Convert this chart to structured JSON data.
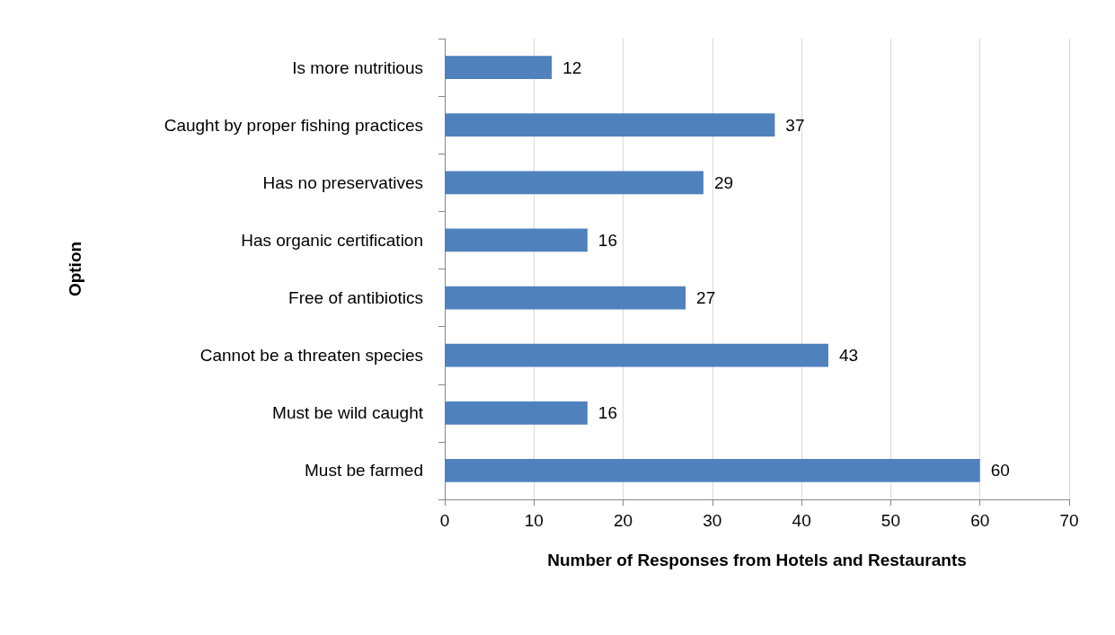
{
  "chart_data": {
    "type": "bar",
    "orientation": "horizontal",
    "xlabel": "Number of Responses from Hotels and Restaurants",
    "ylabel": "Option",
    "categories": [
      "Is more nutritious",
      "Caught by proper fishing practices",
      "Has no preservatives",
      "Has organic certification",
      "Free of antibiotics",
      "Cannot be a threaten species",
      "Must be wild caught",
      "Must be farmed"
    ],
    "values": [
      12,
      37,
      29,
      16,
      27,
      43,
      16,
      60
    ],
    "color": "#4f81bd",
    "xlim": [
      0,
      70
    ],
    "xticks": [
      0,
      10,
      20,
      30,
      40,
      50,
      60,
      70
    ],
    "grid": "x",
    "data_labels": true
  }
}
